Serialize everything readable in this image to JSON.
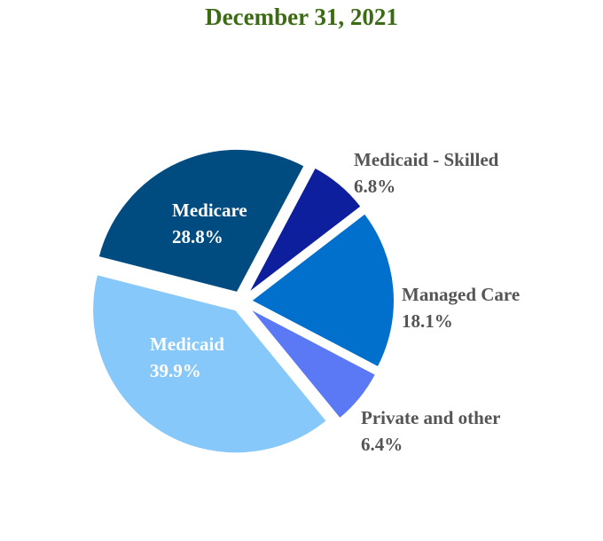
{
  "chart_data": {
    "type": "pie",
    "title": "December 31, 2021",
    "slices": [
      {
        "label": "Medicaid - Skilled",
        "value": 6.8,
        "value_text": "6.8%",
        "color": "#0d1f9c",
        "label_color": "#555555"
      },
      {
        "label": "Managed Care",
        "value": 18.1,
        "value_text": "18.1%",
        "color": "#0070cc",
        "label_color": "#555555"
      },
      {
        "label": "Private and other",
        "value": 6.4,
        "value_text": "6.4%",
        "color": "#5b78f5",
        "label_color": "#555555"
      },
      {
        "label": "Medicaid",
        "value": 39.9,
        "value_text": "39.9%",
        "color": "#87c8fb",
        "label_color": "#ffffff"
      },
      {
        "label": "Medicare",
        "value": 28.8,
        "value_text": "28.8%",
        "color": "#004b80",
        "label_color": "#ffffff"
      }
    ],
    "legend": "none",
    "exploded": true
  }
}
